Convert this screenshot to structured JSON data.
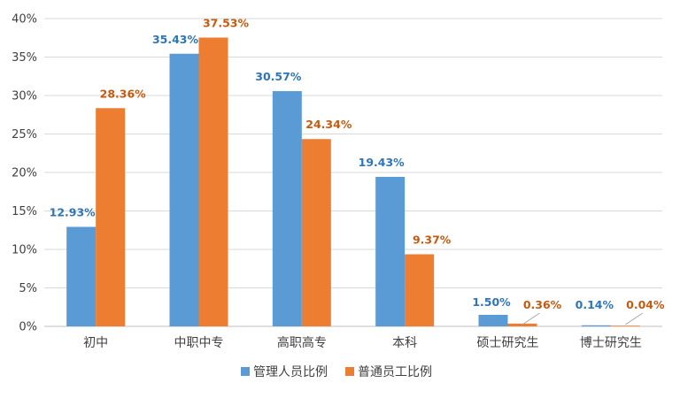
{
  "chart_data": {
    "type": "bar",
    "categories": [
      "初中",
      "中职中专",
      "高职高专",
      "本科",
      "硕士研究生",
      "博士研究生"
    ],
    "series": [
      {
        "name": "管理人员比例",
        "values": [
          12.93,
          35.43,
          30.57,
          19.43,
          1.5,
          0.14
        ],
        "labels": [
          "12.93%",
          "35.43%",
          "30.57%",
          "19.43%",
          "1.50%",
          "0.14%"
        ],
        "color": "#5b9bd5",
        "label_color": "#2e75b6"
      },
      {
        "name": "普通员工比例",
        "values": [
          28.36,
          37.53,
          24.34,
          9.37,
          0.36,
          0.04
        ],
        "labels": [
          "28.36%",
          "37.53%",
          "24.34%",
          "9.37%",
          "0.36%",
          "0.04%"
        ],
        "color": "#ed7d31",
        "label_color": "#c55a11"
      }
    ],
    "ylim": [
      0,
      40
    ],
    "yticks": [
      0,
      5,
      10,
      15,
      20,
      25,
      30,
      35,
      40
    ],
    "ytick_labels": [
      "0%",
      "5%",
      "10%",
      "15%",
      "20%",
      "25%",
      "30%",
      "35%",
      "40%"
    ],
    "grid": true,
    "legend": "bottom",
    "title": "",
    "xlabel": "",
    "ylabel": ""
  }
}
